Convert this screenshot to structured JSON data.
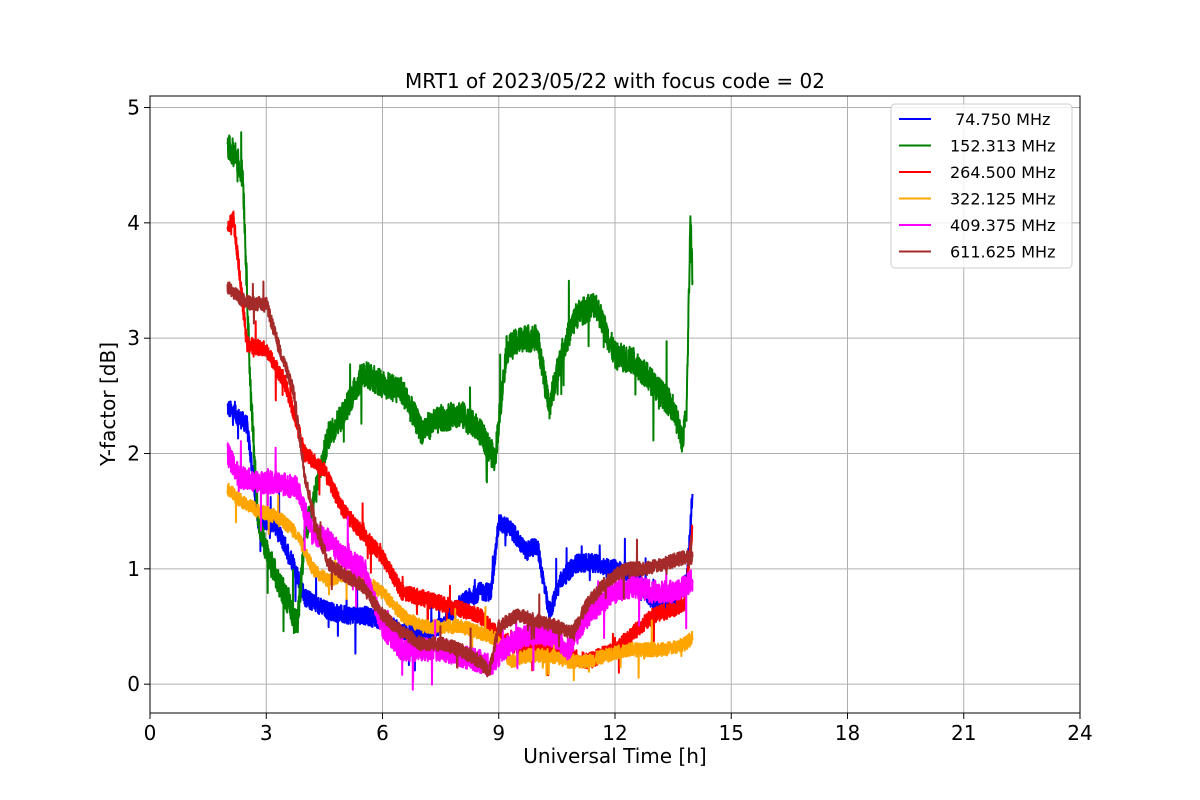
{
  "chart_data": {
    "type": "line",
    "title": "MRT1 of 2023/05/22 with focus code = 02",
    "xlabel": "Universal Time [h]",
    "ylabel": "Y-factor [dB]",
    "xlim": [
      0,
      24
    ],
    "ylim": [
      -0.25,
      5.1
    ],
    "xticks": [
      0,
      3,
      6,
      9,
      12,
      15,
      18,
      21,
      24
    ],
    "yticks": [
      0,
      1,
      2,
      3,
      4,
      5
    ],
    "grid": true,
    "legend_position": "top-right",
    "series": [
      {
        "name": " 74.750 MHz",
        "color": "#0000ff",
        "noise": 0.08,
        "x": [
          2.0,
          2.5,
          2.8,
          3.2,
          3.7,
          4.0,
          4.5,
          5.0,
          5.5,
          6.0,
          6.5,
          7.0,
          7.5,
          8.0,
          8.5,
          8.8,
          9.0,
          9.3,
          9.7,
          10.0,
          10.3,
          10.6,
          11.0,
          11.5,
          12.0,
          12.5,
          13.0,
          13.5,
          13.85,
          14.0
        ],
        "y": [
          2.4,
          2.25,
          1.4,
          1.4,
          1.05,
          0.75,
          0.65,
          0.6,
          0.6,
          0.55,
          0.45,
          0.45,
          0.5,
          0.7,
          0.8,
          0.8,
          1.4,
          1.35,
          1.15,
          1.2,
          0.6,
          0.9,
          1.05,
          1.05,
          1.0,
          0.95,
          0.7,
          0.7,
          0.9,
          1.65
        ]
      },
      {
        "name": "152.313 MHz",
        "color": "#008000",
        "noise": 0.12,
        "x": [
          2.0,
          2.2,
          2.4,
          2.6,
          2.8,
          3.0,
          3.3,
          3.6,
          3.8,
          4.0,
          4.3,
          4.6,
          5.0,
          5.5,
          6.0,
          6.5,
          7.0,
          7.5,
          8.0,
          8.5,
          8.9,
          9.2,
          9.6,
          10.0,
          10.3,
          10.6,
          11.0,
          11.5,
          12.0,
          12.5,
          13.0,
          13.5,
          13.75,
          13.85,
          13.95,
          14.0
        ],
        "y": [
          4.65,
          4.6,
          4.4,
          2.5,
          1.4,
          1.15,
          0.9,
          0.7,
          0.5,
          1.3,
          1.7,
          2.15,
          2.35,
          2.7,
          2.6,
          2.55,
          2.2,
          2.3,
          2.35,
          2.2,
          1.95,
          2.9,
          3.0,
          3.0,
          2.4,
          2.85,
          3.2,
          3.3,
          2.85,
          2.8,
          2.6,
          2.4,
          2.1,
          2.4,
          4.1,
          3.5
        ]
      },
      {
        "name": "264.500 MHz",
        "color": "#ff0000",
        "noise": 0.07,
        "x": [
          2.0,
          2.15,
          2.3,
          2.5,
          3.0,
          3.5,
          4.0,
          4.5,
          5.0,
          5.5,
          6.0,
          6.5,
          7.0,
          7.5,
          8.0,
          8.5,
          8.9,
          9.3,
          9.8,
          10.3,
          10.8,
          11.3,
          12.0,
          12.5,
          13.0,
          13.5,
          13.8,
          14.0
        ],
        "y": [
          3.95,
          4.05,
          3.6,
          2.95,
          2.9,
          2.6,
          2.0,
          1.85,
          1.5,
          1.3,
          1.1,
          0.8,
          0.75,
          0.7,
          0.65,
          0.6,
          0.45,
          0.35,
          0.3,
          0.3,
          0.25,
          0.2,
          0.3,
          0.45,
          0.6,
          0.65,
          0.7,
          1.35
        ]
      },
      {
        "name": "322.125 MHz",
        "color": "#ffa500",
        "noise": 0.06,
        "x": [
          2.0,
          2.3,
          2.8,
          3.3,
          3.8,
          4.2,
          4.6,
          5.0,
          5.5,
          6.0,
          6.5,
          7.0,
          7.5,
          8.0,
          8.5,
          8.9,
          9.3,
          9.8,
          10.3,
          10.8,
          11.3,
          11.8,
          12.3,
          12.8,
          13.3,
          13.8,
          14.0
        ],
        "y": [
          1.7,
          1.6,
          1.5,
          1.45,
          1.3,
          1.0,
          0.9,
          0.95,
          0.9,
          0.8,
          0.6,
          0.5,
          0.5,
          0.5,
          0.45,
          0.4,
          0.2,
          0.25,
          0.25,
          0.2,
          0.2,
          0.25,
          0.3,
          0.3,
          0.3,
          0.35,
          0.4
        ]
      },
      {
        "name": "409.375 MHz",
        "color": "#ff00ff",
        "noise": 0.1,
        "x": [
          2.0,
          2.3,
          2.8,
          3.3,
          3.8,
          4.2,
          4.6,
          5.0,
          5.5,
          6.0,
          6.5,
          7.0,
          7.5,
          8.0,
          8.5,
          8.8,
          9.1,
          9.5,
          10.0,
          10.5,
          10.8,
          11.1,
          11.6,
          12.0,
          12.5,
          13.0,
          13.5,
          13.8,
          14.0
        ],
        "y": [
          2.0,
          1.8,
          1.75,
          1.75,
          1.7,
          1.3,
          1.25,
          1.1,
          1.0,
          0.5,
          0.3,
          0.3,
          0.3,
          0.25,
          0.2,
          0.15,
          0.3,
          0.4,
          0.45,
          0.4,
          0.3,
          0.5,
          0.7,
          0.8,
          0.85,
          0.8,
          0.8,
          0.85,
          0.9
        ]
      },
      {
        "name": "611.625 MHz",
        "color": "#a52a2a",
        "noise": 0.06,
        "x": [
          2.0,
          2.3,
          2.6,
          3.0,
          3.3,
          3.7,
          4.0,
          4.3,
          4.6,
          5.0,
          5.5,
          6.0,
          6.5,
          7.0,
          7.5,
          8.0,
          8.5,
          8.75,
          9.0,
          9.5,
          10.0,
          10.5,
          10.9,
          11.3,
          11.8,
          12.3,
          12.8,
          13.3,
          13.8,
          14.0
        ],
        "y": [
          3.45,
          3.35,
          3.3,
          3.3,
          2.95,
          2.55,
          1.8,
          1.35,
          1.05,
          0.95,
          0.85,
          0.6,
          0.45,
          0.35,
          0.35,
          0.3,
          0.2,
          0.1,
          0.5,
          0.6,
          0.55,
          0.5,
          0.45,
          0.7,
          0.9,
          1.0,
          1.0,
          1.05,
          1.1,
          1.1
        ]
      }
    ]
  }
}
